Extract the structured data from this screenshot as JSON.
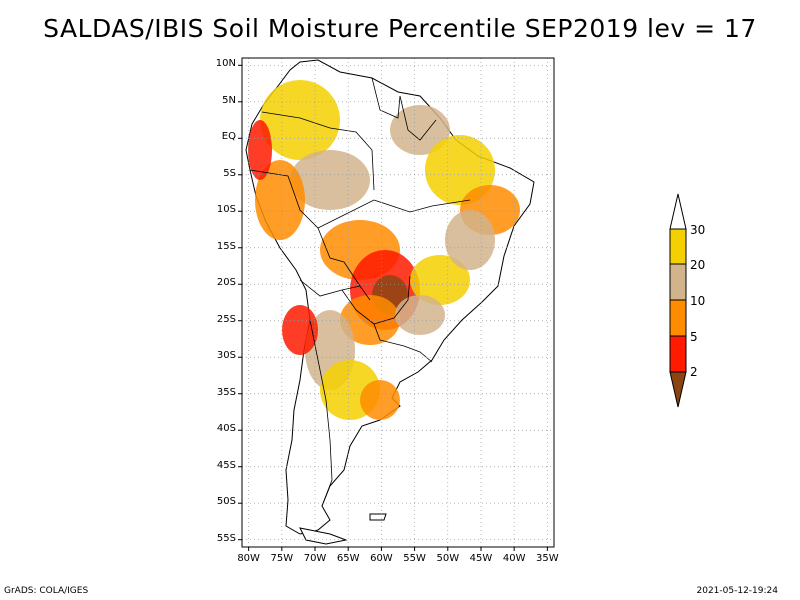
{
  "title": "SALDAS/IBIS Soil Moisture Percentile SEP2019 lev = 17",
  "map": {
    "lat_ticks": [
      "10N",
      "5N",
      "EQ",
      "5S",
      "10S",
      "15S",
      "20S",
      "25S",
      "30S",
      "35S",
      "40S",
      "45S",
      "50S",
      "55S"
    ],
    "lon_ticks": [
      "80W",
      "75W",
      "70W",
      "65W",
      "60W",
      "55W",
      "50W",
      "45W",
      "40W",
      "35W"
    ],
    "lat_range": [
      -56,
      11
    ],
    "lon_range": [
      -81,
      -34
    ],
    "grid": "dotted"
  },
  "legend": {
    "labels": [
      "30",
      "20",
      "10",
      "5",
      "2"
    ],
    "colors": {
      "above30": "#ffffff",
      "20_30": "#f5d000",
      "10_20": "#d2b48c",
      "5_10": "#ff8c00",
      "2_5": "#ff1a00",
      "below2": "#8b4513"
    }
  },
  "footer": {
    "left": "GrADS: COLA/IGES",
    "right": "2021-05-12-19:24"
  }
}
